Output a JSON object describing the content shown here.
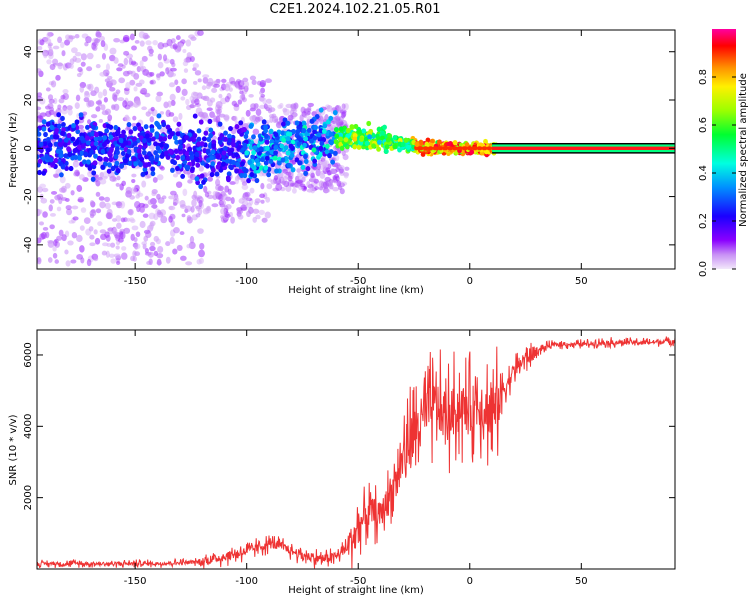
{
  "title": "C2E1.2024.102.21.05.R01",
  "chart_data": [
    {
      "type": "heatmap",
      "xlabel": "Height of straight line (km)",
      "ylabel": "Frequency (Hz)",
      "xlim": [
        -194,
        92
      ],
      "ylim": [
        -50,
        49
      ],
      "x_ticks": [
        -150,
        -100,
        -50,
        0,
        50
      ],
      "y_ticks": [
        -40,
        -20,
        0,
        20,
        40
      ],
      "colorbar": {
        "label": "Normalized spectral amplitude",
        "range": [
          0,
          1
        ],
        "ticks": [
          0.0,
          0.2,
          0.4,
          0.6,
          0.8
        ]
      },
      "ridge": [
        {
          "x": -190,
          "y": 2
        },
        {
          "x": -170,
          "y": 0
        },
        {
          "x": -150,
          "y": 1
        },
        {
          "x": -130,
          "y": 0
        },
        {
          "x": -110,
          "y": -2
        },
        {
          "x": -95,
          "y": -1
        },
        {
          "x": -80,
          "y": 2
        },
        {
          "x": -70,
          "y": 4
        },
        {
          "x": -60,
          "y": 4
        },
        {
          "x": -50,
          "y": 5
        },
        {
          "x": -40,
          "y": 4
        },
        {
          "x": -30,
          "y": 2
        },
        {
          "x": -20,
          "y": 0
        },
        {
          "x": 0,
          "y": 0
        },
        {
          "x": 92,
          "y": 0
        }
      ]
    },
    {
      "type": "line",
      "xlabel": "Height of straight line (km)",
      "ylabel": "SNR (10 * v/v)",
      "xlim": [
        -194,
        92
      ],
      "ylim": [
        0,
        6700
      ],
      "x_ticks": [
        -150,
        -100,
        -50,
        0,
        50
      ],
      "y_ticks": [
        2000,
        4000,
        6000
      ],
      "color": "#ee3333",
      "x": [
        -194,
        -180,
        -160,
        -140,
        -120,
        -110,
        -100,
        -95,
        -90,
        -85,
        -80,
        -75,
        -70,
        -65,
        -60,
        -55,
        -50,
        -45,
        -40,
        -35,
        -30,
        -25,
        -20,
        -15,
        -10,
        -5,
        0,
        5,
        10,
        15,
        20,
        25,
        30,
        35,
        40,
        50,
        60,
        70,
        80,
        92
      ],
      "values": [
        150,
        150,
        150,
        150,
        200,
        350,
        500,
        600,
        700,
        650,
        500,
        400,
        300,
        300,
        350,
        600,
        1200,
        1600,
        1500,
        2200,
        3200,
        3800,
        4300,
        4600,
        4200,
        4600,
        4400,
        4700,
        4300,
        5000,
        5600,
        5900,
        6100,
        6250,
        6300,
        6300,
        6350,
        6350,
        6350,
        6400
      ]
    }
  ]
}
